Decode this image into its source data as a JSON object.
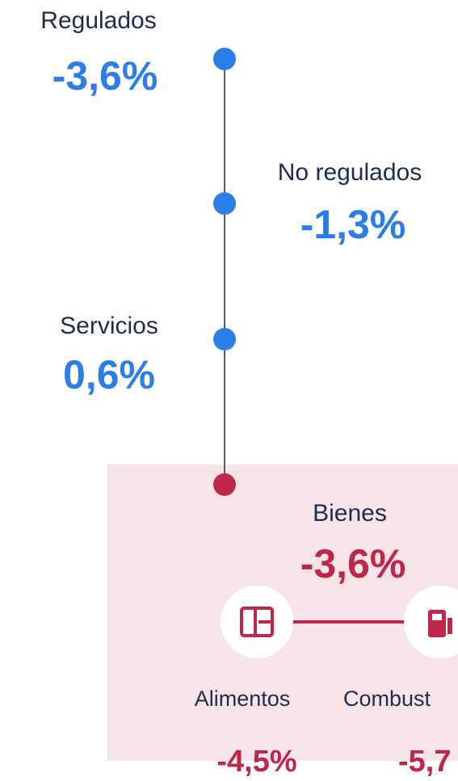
{
  "nodes": [
    {
      "label": "Regulados",
      "value": "-3,6%"
    },
    {
      "label": "No regulados",
      "value": "-1,3%"
    },
    {
      "label": "Servicios",
      "value": "0,6%"
    },
    {
      "label": "Bienes",
      "value": "-3,6%"
    }
  ],
  "subnodes": [
    {
      "label": "Alimentos",
      "value": "-4,5%"
    },
    {
      "label": "Combust",
      "value": "-5,7"
    }
  ]
}
